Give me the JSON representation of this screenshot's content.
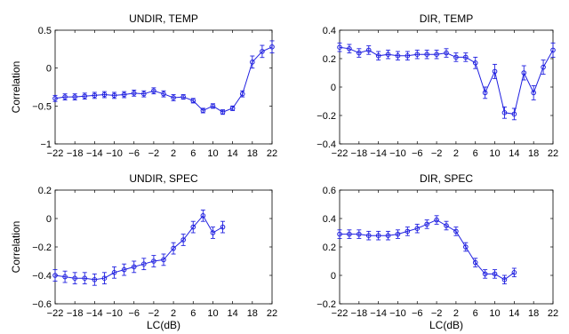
{
  "chart_data": [
    {
      "type": "line",
      "title": "UNDIR, TEMP",
      "xlabel": "",
      "ylabel": "Correlation",
      "xlim": [
        -22,
        22
      ],
      "ylim": [
        -1,
        0.5
      ],
      "xticks": [
        -22,
        -18,
        -14,
        -10,
        -6,
        -2,
        2,
        6,
        10,
        14,
        18,
        22
      ],
      "xtick_labels": [
        "−22",
        "−18",
        "−14",
        "−10",
        "−6",
        "−2",
        "2",
        "6",
        "10",
        "14",
        "18",
        "22"
      ],
      "yticks": [
        -1,
        -0.5,
        0,
        0.5
      ],
      "ytick_labels": [
        "−1",
        "−0.5",
        "0",
        "0.5"
      ],
      "grid": false,
      "color": "#2020e0",
      "x": [
        -22,
        -20,
        -18,
        -16,
        -14,
        -12,
        -10,
        -8,
        -6,
        -4,
        -2,
        0,
        2,
        4,
        6,
        8,
        10,
        12,
        14,
        16,
        18,
        20,
        22
      ],
      "values": [
        -0.4,
        -0.38,
        -0.38,
        -0.37,
        -0.36,
        -0.35,
        -0.36,
        -0.35,
        -0.33,
        -0.34,
        -0.3,
        -0.34,
        -0.39,
        -0.38,
        -0.43,
        -0.56,
        -0.5,
        -0.58,
        -0.53,
        -0.34,
        0.08,
        0.22,
        0.28
      ],
      "errors": [
        0.04,
        0.04,
        0.04,
        0.04,
        0.04,
        0.04,
        0.04,
        0.04,
        0.04,
        0.04,
        0.04,
        0.04,
        0.04,
        0.03,
        0.03,
        0.03,
        0.03,
        0.03,
        0.03,
        0.04,
        0.08,
        0.08,
        0.08
      ]
    },
    {
      "type": "line",
      "title": "DIR, TEMP",
      "xlabel": "",
      "ylabel": "",
      "xlim": [
        -22,
        22
      ],
      "ylim": [
        -0.4,
        0.4
      ],
      "xticks": [
        -22,
        -18,
        -14,
        -10,
        -6,
        -2,
        2,
        6,
        10,
        14,
        18,
        22
      ],
      "xtick_labels": [
        "−22",
        "−18",
        "−14",
        "−10",
        "−6",
        "−2",
        "2",
        "6",
        "10",
        "14",
        "18",
        "22"
      ],
      "yticks": [
        -0.4,
        -0.2,
        0,
        0.2,
        0.4
      ],
      "ytick_labels": [
        "−0.4",
        "−0.2",
        "0",
        "0.2",
        "0.4"
      ],
      "grid": false,
      "color": "#2020e0",
      "x": [
        -22,
        -20,
        -18,
        -16,
        -14,
        -12,
        -10,
        -8,
        -6,
        -4,
        -2,
        0,
        2,
        4,
        6,
        8,
        10,
        12,
        14,
        16,
        18,
        20,
        22
      ],
      "values": [
        0.28,
        0.27,
        0.24,
        0.26,
        0.22,
        0.23,
        0.22,
        0.22,
        0.23,
        0.23,
        0.23,
        0.24,
        0.21,
        0.21,
        0.17,
        -0.04,
        0.11,
        -0.18,
        -0.19,
        0.1,
        -0.04,
        0.14,
        0.26
      ],
      "errors": [
        0.03,
        0.03,
        0.03,
        0.03,
        0.03,
        0.03,
        0.03,
        0.03,
        0.03,
        0.03,
        0.03,
        0.03,
        0.03,
        0.03,
        0.04,
        0.04,
        0.05,
        0.04,
        0.04,
        0.05,
        0.05,
        0.05,
        0.05
      ]
    },
    {
      "type": "line",
      "title": "UNDIR, SPEC",
      "xlabel": "LC(dB)",
      "ylabel": "Correlation",
      "xlim": [
        -22,
        22
      ],
      "ylim": [
        -0.6,
        0.2
      ],
      "xticks": [
        -22,
        -18,
        -14,
        -10,
        -6,
        -2,
        2,
        6,
        10,
        14,
        18,
        22
      ],
      "xtick_labels": [
        "−22",
        "−18",
        "−14",
        "−10",
        "−6",
        "−2",
        "2",
        "6",
        "10",
        "14",
        "18",
        "22"
      ],
      "yticks": [
        -0.6,
        -0.4,
        -0.2,
        0,
        0.2
      ],
      "ytick_labels": [
        "−0.6",
        "−0.4",
        "−0.2",
        "0",
        "0.2"
      ],
      "grid": false,
      "color": "#2020e0",
      "x": [
        -22,
        -20,
        -18,
        -16,
        -14,
        -12,
        -10,
        -8,
        -6,
        -4,
        -2,
        0,
        2,
        4,
        6,
        8,
        10,
        12
      ],
      "values": [
        -0.4,
        -0.41,
        -0.42,
        -0.42,
        -0.43,
        -0.42,
        -0.38,
        -0.36,
        -0.34,
        -0.32,
        -0.3,
        -0.29,
        -0.21,
        -0.15,
        -0.06,
        0.02,
        -0.1,
        -0.06
      ],
      "errors": [
        0.04,
        0.04,
        0.04,
        0.04,
        0.04,
        0.04,
        0.04,
        0.04,
        0.04,
        0.04,
        0.04,
        0.04,
        0.04,
        0.04,
        0.04,
        0.04,
        0.04,
        0.04
      ]
    },
    {
      "type": "line",
      "title": "DIR, SPEC",
      "xlabel": "LC(dB)",
      "ylabel": "",
      "xlim": [
        -22,
        22
      ],
      "ylim": [
        -0.2,
        0.6
      ],
      "xticks": [
        -22,
        -18,
        -14,
        -10,
        -6,
        -2,
        2,
        6,
        10,
        14,
        18,
        22
      ],
      "xtick_labels": [
        "−22",
        "−18",
        "−14",
        "−10",
        "−6",
        "−2",
        "2",
        "6",
        "10",
        "14",
        "18",
        "22"
      ],
      "yticks": [
        -0.2,
        0,
        0.2,
        0.4,
        0.6
      ],
      "ytick_labels": [
        "−0.2",
        "0",
        "0.2",
        "0.4",
        "0.6"
      ],
      "grid": false,
      "color": "#2020e0",
      "x": [
        -22,
        -20,
        -18,
        -16,
        -14,
        -12,
        -10,
        -8,
        -6,
        -4,
        -2,
        0,
        2,
        4,
        6,
        8,
        10,
        12,
        14
      ],
      "values": [
        0.29,
        0.29,
        0.29,
        0.28,
        0.28,
        0.28,
        0.29,
        0.31,
        0.33,
        0.36,
        0.39,
        0.35,
        0.31,
        0.2,
        0.09,
        0.01,
        0.01,
        -0.03,
        0.02
      ],
      "errors": [
        0.03,
        0.03,
        0.03,
        0.03,
        0.03,
        0.03,
        0.03,
        0.03,
        0.03,
        0.03,
        0.03,
        0.03,
        0.03,
        0.03,
        0.03,
        0.03,
        0.03,
        0.03,
        0.03
      ]
    }
  ]
}
